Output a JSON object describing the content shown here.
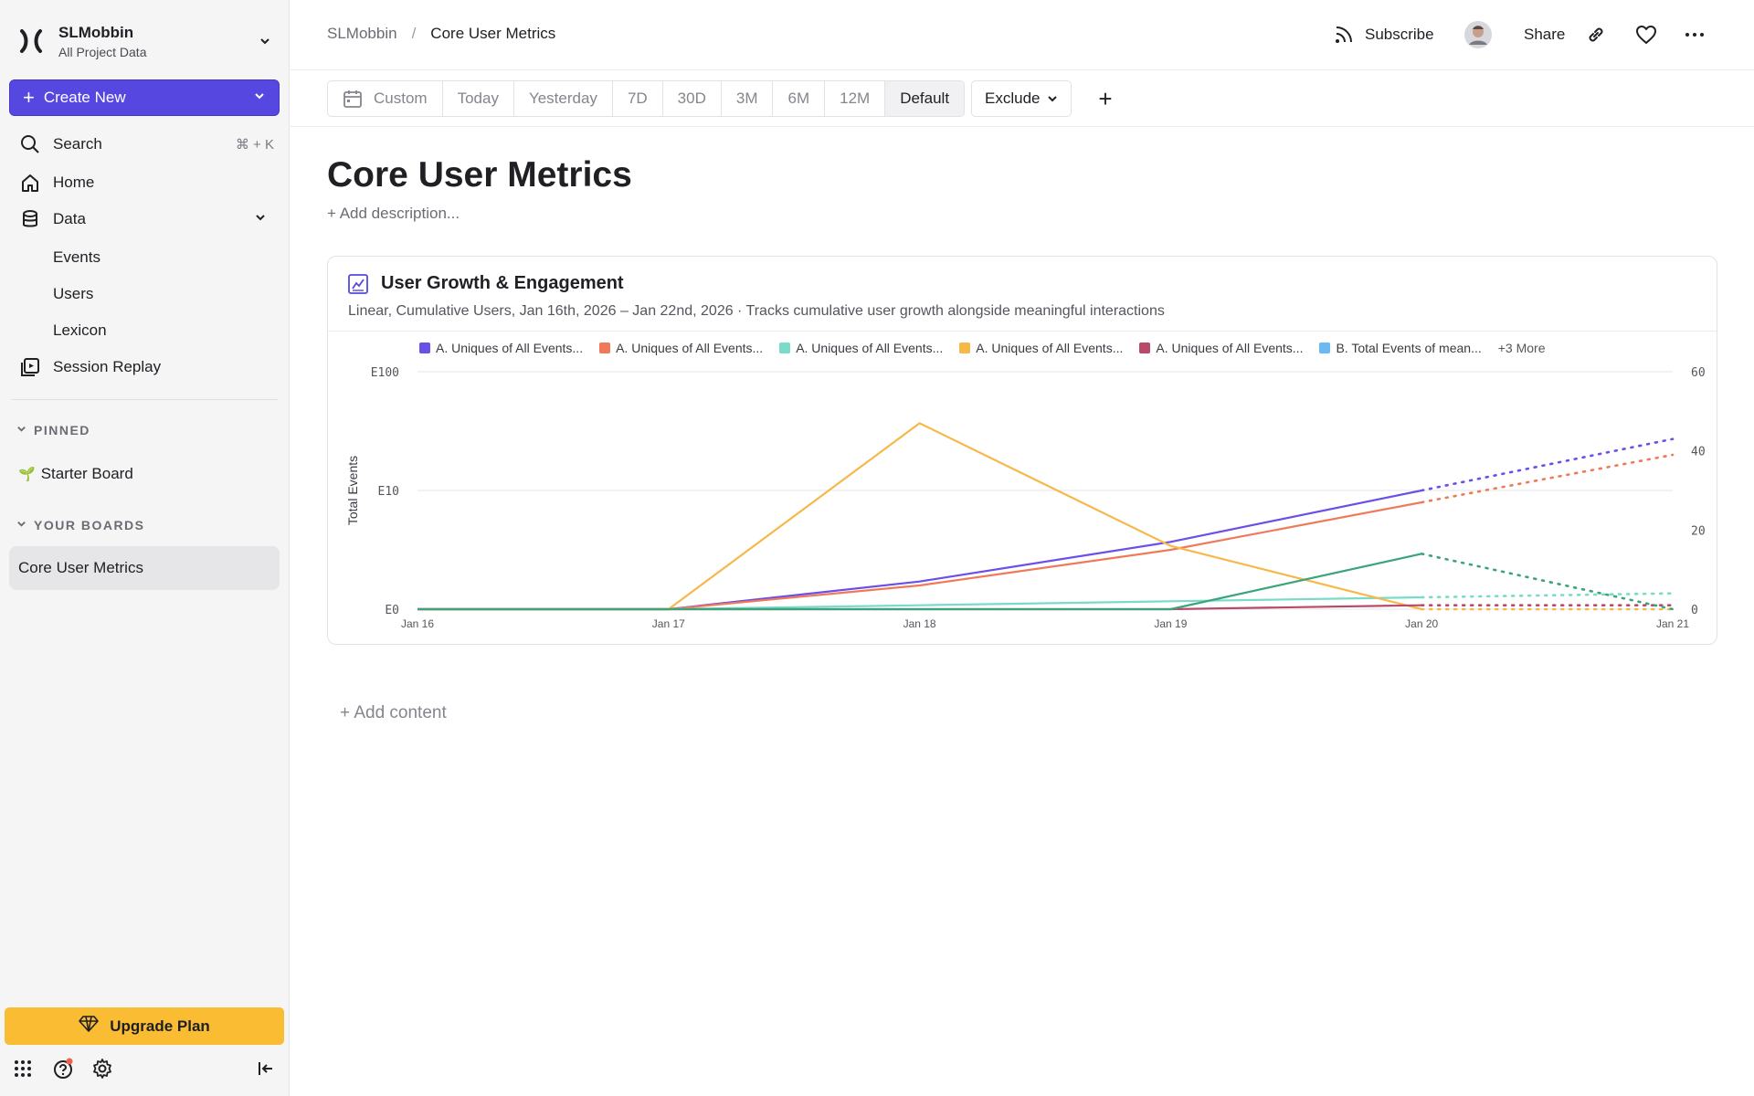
{
  "sidebar": {
    "org_name": "SLMobbin",
    "org_sub": "All Project Data",
    "create_label": "Create New",
    "search_label": "Search",
    "search_kbd": "⌘ + K",
    "nav": {
      "home": "Home",
      "data": "Data",
      "events": "Events",
      "users": "Users",
      "lexicon": "Lexicon",
      "session_replay": "Session Replay"
    },
    "pinned_heading": "PINNED",
    "pinned": [
      {
        "emoji": "🌱",
        "label": "Starter Board"
      }
    ],
    "boards_heading": "YOUR BOARDS",
    "boards": [
      {
        "label": "Core User Metrics"
      }
    ],
    "upgrade_label": "Upgrade Plan"
  },
  "header": {
    "breadcrumb_root": "SLMobbin",
    "breadcrumb_sep": "/",
    "breadcrumb_current": "Core User Metrics",
    "subscribe_label": "Subscribe",
    "share_label": "Share"
  },
  "toolbar": {
    "date_options": [
      "Custom",
      "Today",
      "Yesterday",
      "7D",
      "30D",
      "3M",
      "6M",
      "12M",
      "Default"
    ],
    "active_date_option": "Default",
    "exclude_label": "Exclude",
    "add_label": "+"
  },
  "page": {
    "title": "Core User Metrics",
    "add_description": "+ Add description...",
    "add_content": "+ Add content"
  },
  "card": {
    "title": "User Growth & Engagement",
    "subtitle": "Linear, Cumulative Users, Jan 16th, 2026 – Jan 22nd, 2026 · Tracks cumulative user growth alongside meaningful interactions",
    "legend": [
      {
        "label": "A. Uniques of All Events...",
        "color": "#6c4ee8"
      },
      {
        "label": "A. Uniques of All Events...",
        "color": "#f0795a"
      },
      {
        "label": "A. Uniques of All Events...",
        "color": "#7adcc8"
      },
      {
        "label": "A. Uniques of All Events...",
        "color": "#f7b84a"
      },
      {
        "label": "A. Uniques of All Events...",
        "color": "#b84a6a"
      },
      {
        "label": "B. Total Events of mean...",
        "color": "#6cb8f2"
      }
    ],
    "legend_more": "+3 More"
  },
  "chart_data": {
    "type": "line",
    "x": [
      "Jan 16",
      "Jan 17",
      "Jan 18",
      "Jan 19",
      "Jan 20",
      "Jan 21"
    ],
    "ylabel": "Total Events",
    "y_ticks_left": [
      "E100",
      "E10",
      "E0"
    ],
    "y_ticks_right": [
      "60",
      "40",
      "20",
      "0"
    ],
    "ylim_right": [
      0,
      60
    ],
    "series": [
      {
        "color": "#6c4ee8",
        "values": [
          0,
          0,
          7,
          17,
          30,
          43
        ],
        "projected_from": 4
      },
      {
        "color": "#f0795a",
        "values": [
          0,
          0,
          6,
          15,
          27,
          39
        ],
        "projected_from": 4
      },
      {
        "color": "#7adcc8",
        "values": [
          0,
          0,
          1,
          2,
          3,
          4
        ],
        "projected_from": 4
      },
      {
        "color": "#f7b84a",
        "values": [
          0,
          0,
          47,
          16,
          0,
          0
        ],
        "projected_from": 4
      },
      {
        "color": "#b84a6a",
        "values": [
          0,
          0,
          0,
          0,
          1,
          1
        ],
        "projected_from": 4
      },
      {
        "color": "#3aa57a",
        "values": [
          0,
          0,
          0,
          0,
          14,
          0
        ],
        "projected_from": 4
      }
    ]
  }
}
